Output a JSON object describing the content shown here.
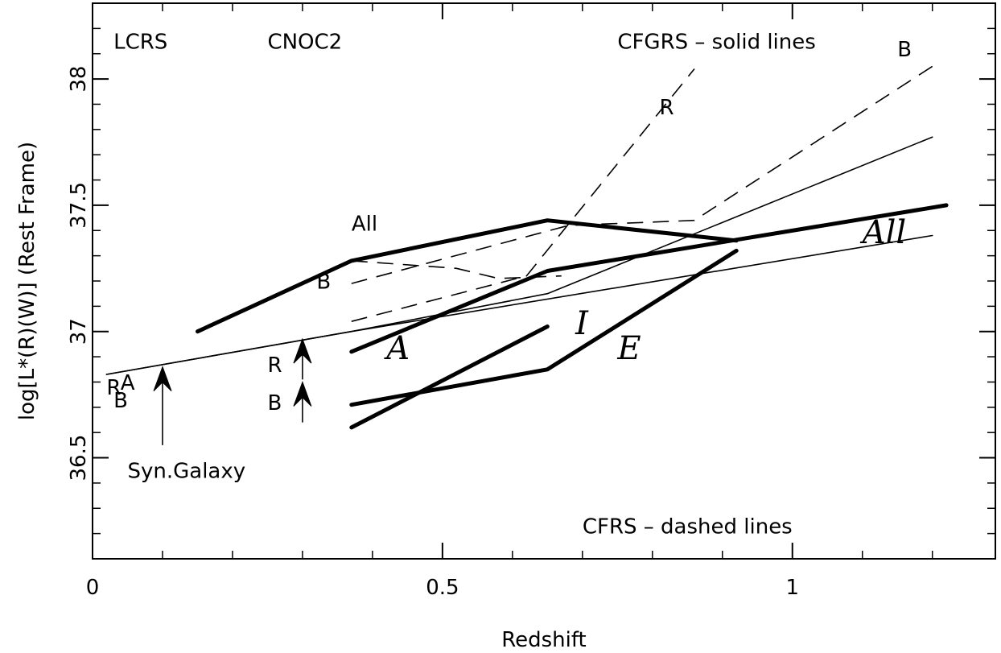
{
  "chart_data": {
    "type": "line",
    "title": "",
    "xlabel": "Redshift",
    "ylabel": "log[L*(R)(W)]  (Rest Frame)",
    "xlim": [
      0,
      1.29
    ],
    "ylim": [
      36.1,
      38.3
    ],
    "xticks": [
      {
        "value": 0,
        "label": "0"
      },
      {
        "value": 0.5,
        "label": "0.5"
      },
      {
        "value": 1,
        "label": "1"
      }
    ],
    "yticks": [
      {
        "value": 36.5,
        "label": "36.5"
      },
      {
        "value": 37,
        "label": "37"
      },
      {
        "value": 37.5,
        "label": "37.5"
      },
      {
        "value": 38,
        "label": "38"
      }
    ],
    "xminor": [
      0.1,
      0.2,
      0.3,
      0.4,
      0.6,
      0.7,
      0.8,
      0.9,
      1.1,
      1.2
    ],
    "yminor": [
      36.2,
      36.3,
      36.4,
      36.6,
      36.7,
      36.8,
      36.9,
      37.1,
      37.2,
      37.3,
      37.4,
      37.6,
      37.7,
      37.8,
      37.9,
      38.1,
      38.2
    ],
    "series": [
      {
        "id": "cfgrs-all",
        "style": "thick",
        "points": [
          [
            0.15,
            37.0
          ],
          [
            0.37,
            37.28
          ],
          [
            0.65,
            37.44
          ],
          [
            0.92,
            37.36
          ]
        ]
      },
      {
        "id": "cfgrs-a",
        "style": "thick",
        "points": [
          [
            0.37,
            36.92
          ],
          [
            0.65,
            37.24
          ],
          [
            1.22,
            37.5
          ]
        ]
      },
      {
        "id": "cfgrs-i",
        "style": "thick",
        "points": [
          [
            0.37,
            36.62
          ],
          [
            0.65,
            37.02
          ]
        ]
      },
      {
        "id": "cfgrs-e",
        "style": "thick",
        "points": [
          [
            0.37,
            36.71
          ],
          [
            0.65,
            36.85
          ],
          [
            0.92,
            37.32
          ]
        ]
      },
      {
        "id": "synthetic-galaxy-r",
        "style": "thin",
        "points": [
          [
            0.02,
            36.83
          ],
          [
            0.37,
            37.0
          ],
          [
            0.65,
            37.15
          ],
          [
            1.2,
            37.77
          ]
        ]
      },
      {
        "id": "synthetic-galaxy-b",
        "style": "thin",
        "points": [
          [
            0.02,
            36.83
          ],
          [
            0.37,
            37.0
          ],
          [
            1.2,
            37.38
          ]
        ]
      },
      {
        "id": "cfrs-r",
        "style": "dashed",
        "points": [
          [
            0.37,
            37.04
          ],
          [
            0.62,
            37.22
          ],
          [
            0.86,
            38.04
          ]
        ]
      },
      {
        "id": "cfrs-b",
        "style": "dashed",
        "points": [
          [
            0.37,
            37.19
          ],
          [
            0.68,
            37.42
          ],
          [
            0.86,
            37.44
          ],
          [
            1.2,
            38.05
          ]
        ]
      },
      {
        "id": "cfrs-all",
        "style": "dashed",
        "points": [
          [
            0.37,
            37.28
          ],
          [
            0.52,
            37.25
          ],
          [
            0.58,
            37.21
          ],
          [
            0.67,
            37.22
          ]
        ]
      }
    ],
    "arrows": [
      {
        "id": "syn-galaxy-arrow",
        "x": 0.1,
        "y0": 36.55,
        "y1": 36.86
      },
      {
        "id": "cnoc2-r-arrow",
        "x": 0.3,
        "y0": 36.81,
        "y1": 36.97
      },
      {
        "id": "cnoc2-b-arrow",
        "x": 0.3,
        "y0": 36.64,
        "y1": 36.8
      }
    ],
    "annotations": [
      {
        "id": "label-lcrs",
        "text": "LCRS",
        "x": 0.03,
        "y": 38.12,
        "style": "plain"
      },
      {
        "id": "label-cnoc2",
        "text": "CNOC2",
        "x": 0.25,
        "y": 38.12,
        "style": "plain"
      },
      {
        "id": "label-cfgrs-solid",
        "text": "CFGRS – solid lines",
        "x": 0.75,
        "y": 38.12,
        "style": "plain"
      },
      {
        "id": "label-cfrs-b",
        "text": "B",
        "x": 1.15,
        "y": 38.09,
        "style": "plain"
      },
      {
        "id": "label-cfrs-r",
        "text": "R",
        "x": 0.81,
        "y": 37.86,
        "style": "plain"
      },
      {
        "id": "label-all-upper",
        "text": "All",
        "x": 0.37,
        "y": 37.4,
        "style": "plain"
      },
      {
        "id": "label-b-mid",
        "text": "B",
        "x": 0.32,
        "y": 37.17,
        "style": "plain"
      },
      {
        "id": "label-r-cnoc2",
        "text": "R",
        "x": 0.25,
        "y": 36.84,
        "style": "plain"
      },
      {
        "id": "label-b-cnoc2",
        "text": "B",
        "x": 0.25,
        "y": 36.69,
        "style": "plain"
      },
      {
        "id": "label-lcrs-r",
        "text": "R",
        "x": 0.02,
        "y": 36.75,
        "style": "plain"
      },
      {
        "id": "label-lcrs-a",
        "text": "A",
        "x": 0.04,
        "y": 36.77,
        "style": "plain"
      },
      {
        "id": "label-lcrs-b",
        "text": "B",
        "x": 0.03,
        "y": 36.7,
        "style": "plain"
      },
      {
        "id": "label-syn-galaxy",
        "text": "Syn.Galaxy",
        "x": 0.05,
        "y": 36.42,
        "style": "plain"
      },
      {
        "id": "label-cfrs-dashed",
        "text": "CFRS – dashed lines",
        "x": 0.7,
        "y": 36.2,
        "style": "plain"
      },
      {
        "id": "label-all-italic",
        "text": "All",
        "x": 1.1,
        "y": 37.35,
        "style": "italic"
      },
      {
        "id": "label-a-italic",
        "text": "A",
        "x": 0.42,
        "y": 36.89,
        "style": "italic"
      },
      {
        "id": "label-i-italic",
        "text": "I",
        "x": 0.69,
        "y": 36.99,
        "style": "italic"
      },
      {
        "id": "label-e-italic",
        "text": "E",
        "x": 0.75,
        "y": 36.89,
        "style": "italic"
      }
    ]
  }
}
